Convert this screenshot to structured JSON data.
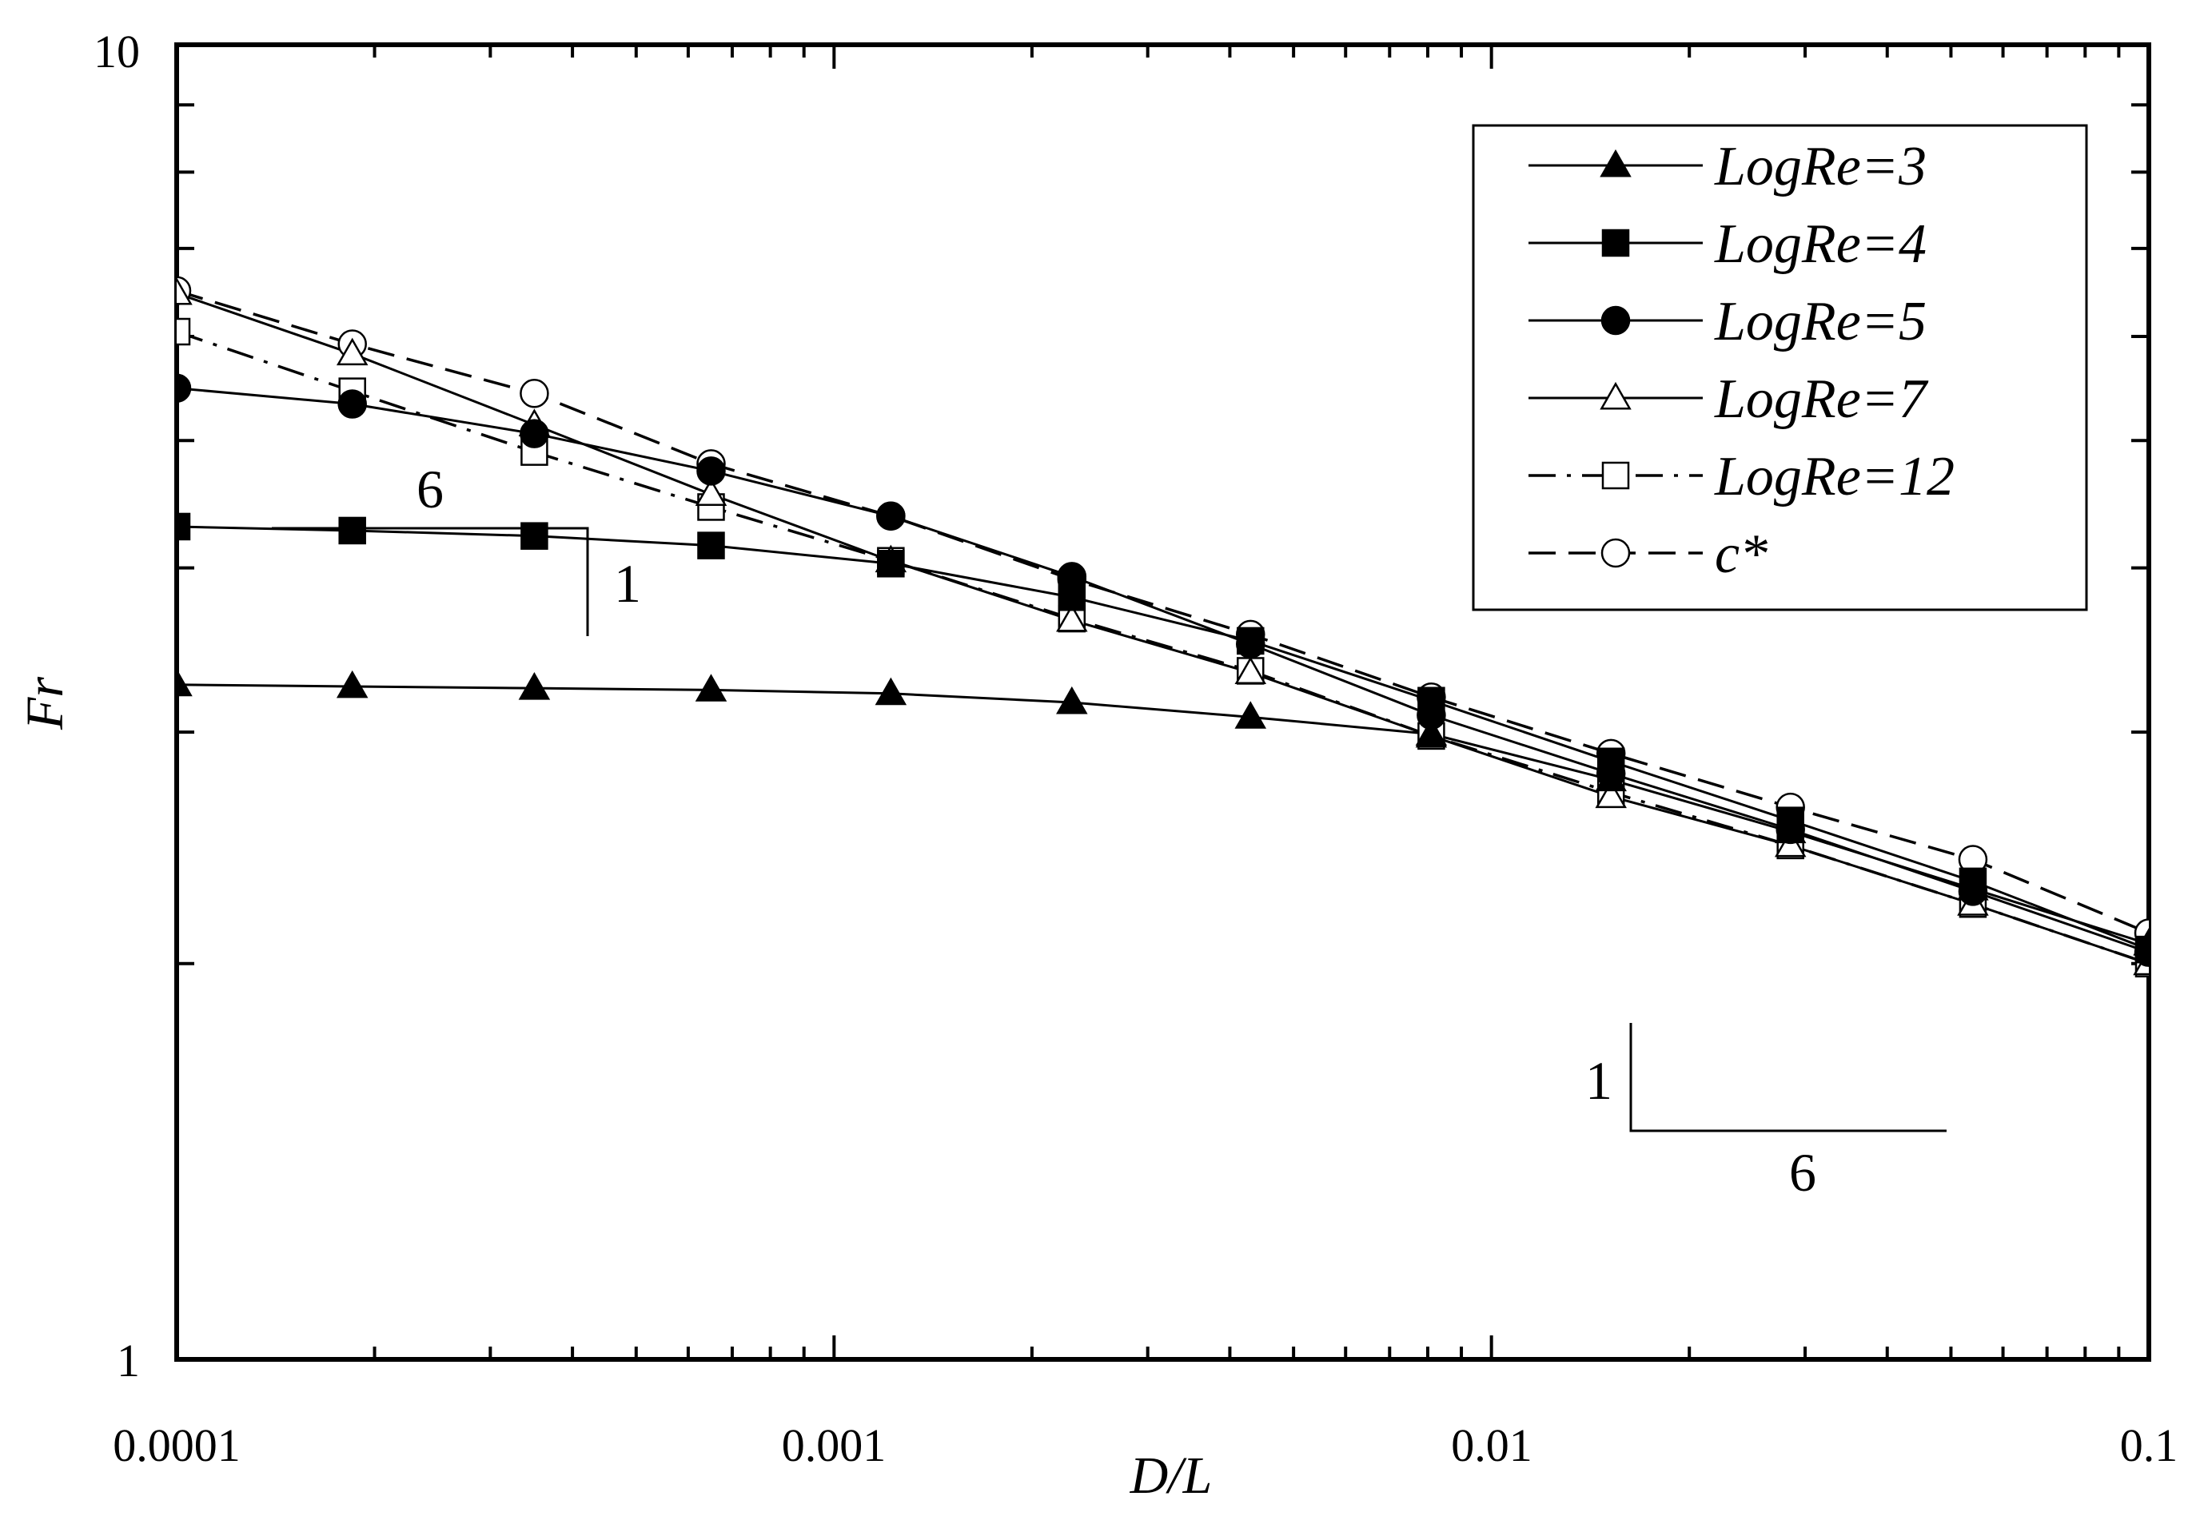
{
  "chart_data": {
    "type": "line",
    "title": "",
    "xlabel": "D/L",
    "ylabel": "Fr",
    "xscale": "log",
    "yscale": "log",
    "xlim": [
      0.0001,
      0.1
    ],
    "ylim": [
      1,
      10
    ],
    "grid": false,
    "legend_position": "top-right",
    "x_tick_labels": [
      "0.0001",
      "0.001",
      "0.01",
      "0.1"
    ],
    "x_tick_values": [
      0.0001,
      0.001,
      0.01,
      0.1
    ],
    "y_tick_labels": [
      "1",
      "10"
    ],
    "y_tick_values": [
      1,
      10
    ],
    "x": [
      0.0001,
      0.000185,
      0.00035,
      0.00065,
      0.00122,
      0.0023,
      0.0043,
      0.0081,
      0.0152,
      0.0285,
      0.054,
      0.1
    ],
    "series": [
      {
        "name": "LogRe=3",
        "marker": "triangle-filled",
        "line": "solid",
        "values": [
          3.26,
          3.25,
          3.24,
          3.23,
          3.21,
          3.16,
          3.08,
          2.99,
          2.76,
          2.52,
          2.28,
          2.07
        ]
      },
      {
        "name": "LogRe=4",
        "marker": "square-filled",
        "line": "solid",
        "values": [
          4.3,
          4.27,
          4.23,
          4.16,
          4.03,
          3.8,
          3.52,
          3.17,
          2.85,
          2.57,
          2.31,
          2.05
        ]
      },
      {
        "name": "LogRe=5",
        "marker": "circle-filled",
        "line": "solid",
        "values": [
          5.48,
          5.33,
          5.06,
          4.74,
          4.38,
          3.94,
          3.5,
          3.09,
          2.79,
          2.53,
          2.27,
          2.04
        ]
      },
      {
        "name": "LogRe=7",
        "marker": "triangle-open",
        "line": "solid",
        "values": [
          6.47,
          5.82,
          5.14,
          4.55,
          4.05,
          3.65,
          3.33,
          2.98,
          2.68,
          2.46,
          2.22,
          2.0
        ]
      },
      {
        "name": "LogRe=12",
        "marker": "square-open",
        "line": "dash-dot",
        "values": [
          6.05,
          5.45,
          4.9,
          4.45,
          4.05,
          3.66,
          3.34,
          2.98,
          2.7,
          2.46,
          2.22,
          2.0
        ]
      },
      {
        "name": "c*",
        "marker": "circle-open",
        "line": "dashed",
        "values": [
          6.5,
          5.92,
          5.43,
          4.8,
          4.38,
          3.92,
          3.56,
          3.19,
          2.89,
          2.63,
          2.4,
          2.11
        ]
      }
    ],
    "annotations": [
      {
        "type": "slope-triangle",
        "rise": "1",
        "run": "6",
        "location": "top-left"
      },
      {
        "type": "slope-triangle",
        "rise": "1",
        "run": "6",
        "location": "bottom-right"
      }
    ]
  }
}
